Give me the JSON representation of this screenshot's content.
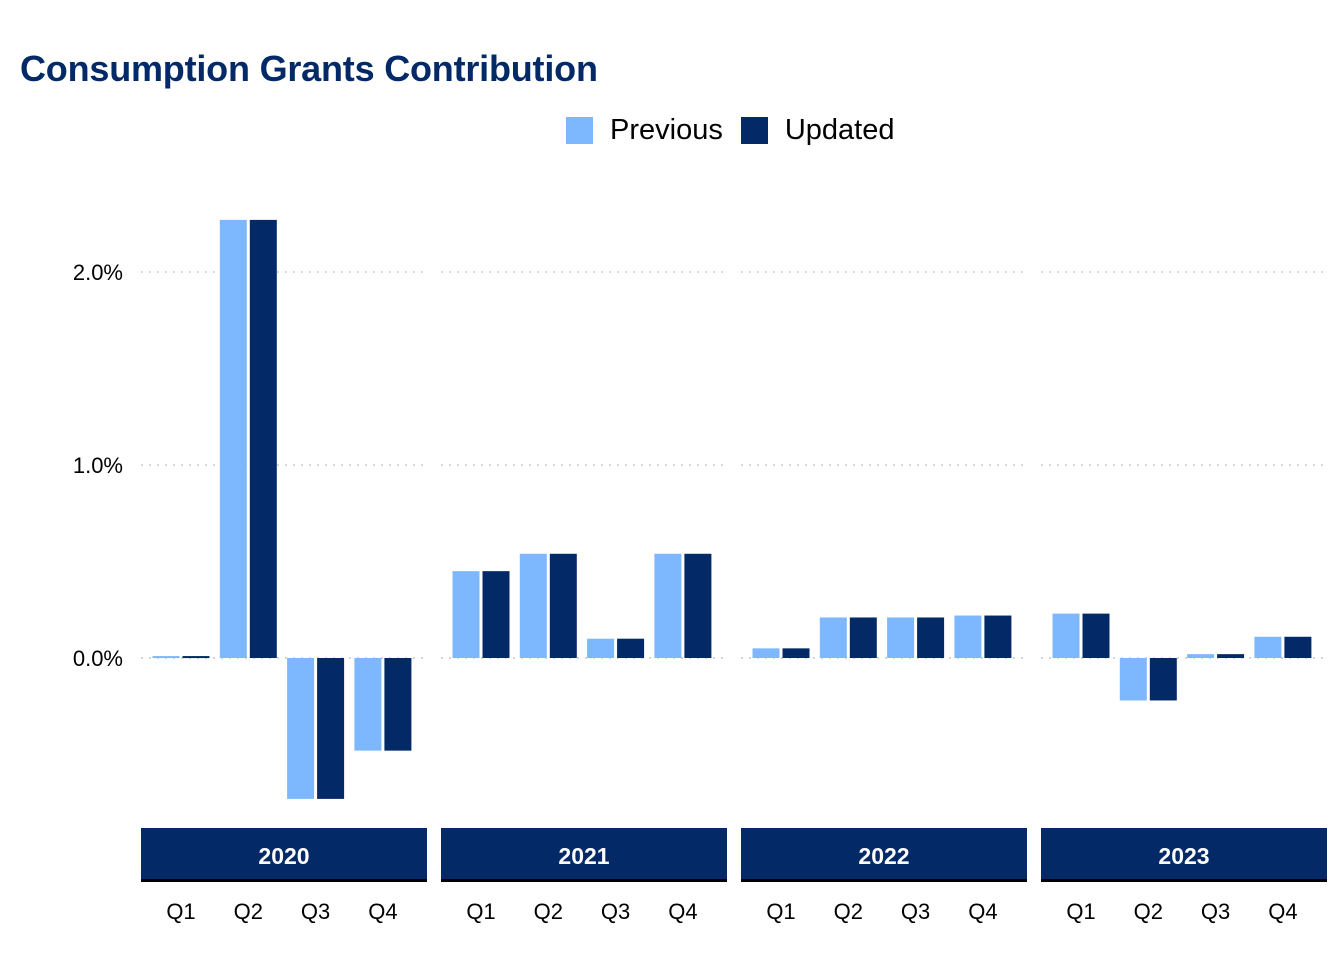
{
  "title": "Consumption Grants Contribution",
  "legend": [
    {
      "label": "Previous",
      "color": "#7db8ff"
    },
    {
      "label": "Updated",
      "color": "#032a67"
    }
  ],
  "colors": {
    "previous": "#7db8ff",
    "updated": "#032a67",
    "strip": "#032a67",
    "title": "#032a67"
  },
  "chart_data": {
    "type": "bar",
    "title": "Consumption Grants Contribution",
    "xlabel": "",
    "ylabel": "",
    "ylim": [
      -0.8,
      2.3
    ],
    "yticks": [
      0.0,
      1.0,
      2.0
    ],
    "ytick_labels": [
      "0.0%",
      "1.0%",
      "2.0%"
    ],
    "grid": "horizontal dotted",
    "legend_position": "top",
    "facets": [
      {
        "label": "2020",
        "categories": [
          "Q1",
          "Q2",
          "Q3",
          "Q4"
        ],
        "series": [
          {
            "name": "Previous",
            "values": [
              0.01,
              2.27,
              -0.73,
              -0.48
            ]
          },
          {
            "name": "Updated",
            "values": [
              0.01,
              2.27,
              -0.73,
              -0.48
            ]
          }
        ]
      },
      {
        "label": "2021",
        "categories": [
          "Q1",
          "Q2",
          "Q3",
          "Q4"
        ],
        "series": [
          {
            "name": "Previous",
            "values": [
              0.45,
              0.54,
              0.1,
              0.54
            ]
          },
          {
            "name": "Updated",
            "values": [
              0.45,
              0.54,
              0.1,
              0.54
            ]
          }
        ]
      },
      {
        "label": "2022",
        "categories": [
          "Q1",
          "Q2",
          "Q3",
          "Q4"
        ],
        "series": [
          {
            "name": "Previous",
            "values": [
              0.05,
              0.21,
              0.21,
              0.22
            ]
          },
          {
            "name": "Updated",
            "values": [
              0.05,
              0.21,
              0.21,
              0.22
            ]
          }
        ]
      },
      {
        "label": "2023",
        "categories": [
          "Q1",
          "Q2",
          "Q3",
          "Q4"
        ],
        "series": [
          {
            "name": "Previous",
            "values": [
              0.23,
              -0.22,
              0.02,
              0.11
            ]
          },
          {
            "name": "Updated",
            "values": [
              0.23,
              -0.22,
              0.02,
              0.11
            ]
          }
        ]
      }
    ]
  }
}
